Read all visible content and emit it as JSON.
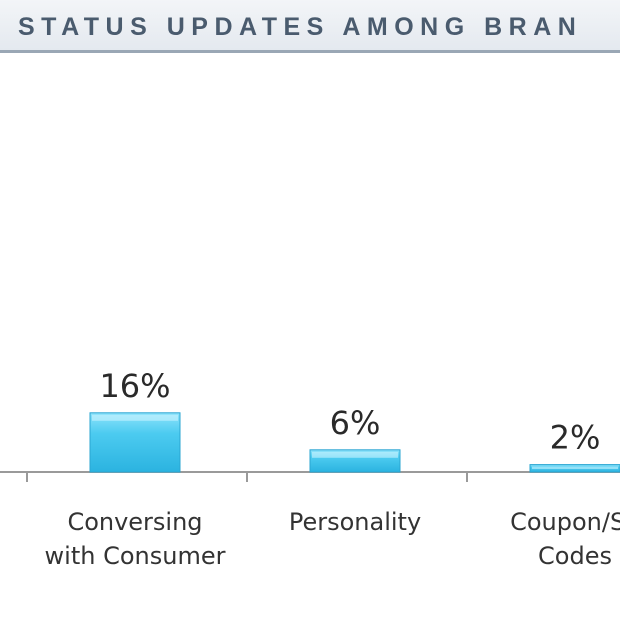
{
  "chart_data": {
    "type": "bar",
    "title": "STATUS UPDATES AMONG BRAN",
    "categories": [
      [
        "Conversing",
        "with Consumer"
      ],
      [
        "Personality"
      ],
      [
        "Coupon/Sa",
        "Codes"
      ]
    ],
    "values": [
      16,
      6,
      2
    ],
    "value_labels": [
      "16%",
      "6%",
      "2%"
    ],
    "grid": false,
    "bar_color": "#44c6ec"
  }
}
